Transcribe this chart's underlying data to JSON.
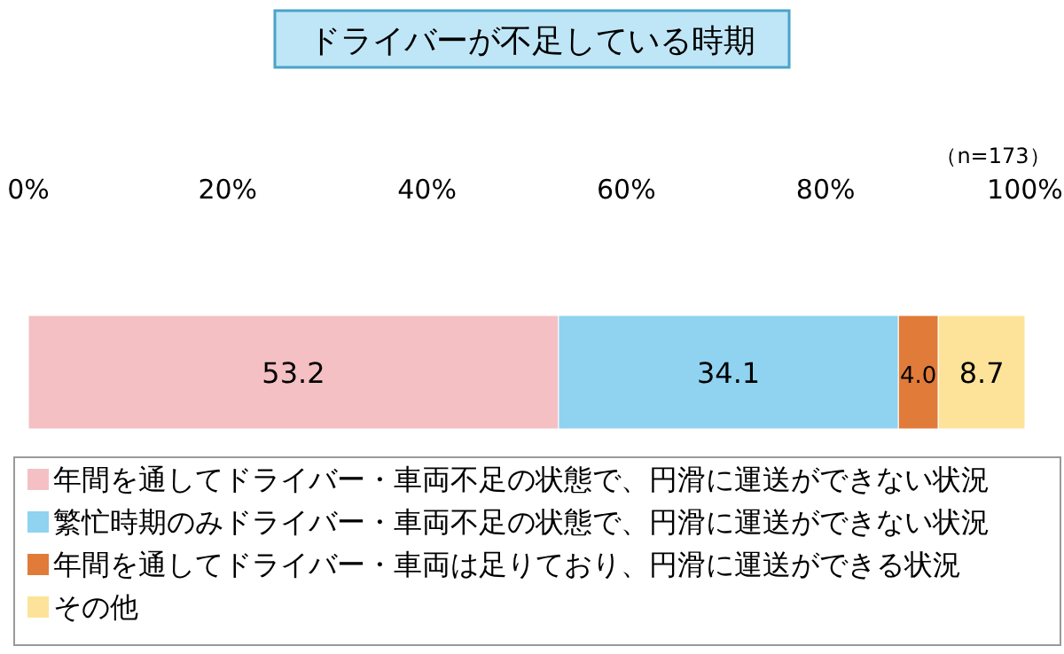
{
  "chart_data": {
    "type": "bar",
    "orientation": "horizontal",
    "stacked": true,
    "title": "ドライバーが不足している時期",
    "categories": [
      null
    ],
    "series": [
      {
        "name": "年間を通してドライバー・車両不足の状態で、円滑に運送ができない状況",
        "color": "#f4c0c4",
        "values": [
          53.2
        ],
        "value_labels": [
          "53.2"
        ]
      },
      {
        "name": "繁忙時期のみドライバー・車両不足の状態で、円滑に運送ができない状況",
        "color": "#8fd3f0",
        "values": [
          34.1
        ],
        "value_labels": [
          "34.1"
        ]
      },
      {
        "name": "年間を通してドライバー・車両は足りており、円滑に運送ができる状況",
        "color": "#e07b39",
        "values": [
          4.0
        ],
        "value_labels": [
          "4.0"
        ]
      },
      {
        "name": "その他",
        "color": "#fde39a",
        "values": [
          8.7
        ],
        "value_labels": [
          "8.7"
        ]
      }
    ],
    "xlim": [
      0,
      100
    ],
    "xticks": [
      {
        "value": 0,
        "label": "0%"
      },
      {
        "value": 20,
        "label": "20%"
      },
      {
        "value": 40,
        "label": "40%"
      },
      {
        "value": 60,
        "label": "60%"
      },
      {
        "value": 80,
        "label": "80%"
      },
      {
        "value": 100,
        "label": "100%"
      }
    ],
    "annotations": [
      "（n=173）"
    ],
    "legend": "bottom"
  }
}
